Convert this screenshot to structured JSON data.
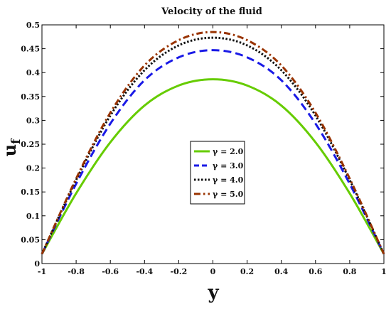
{
  "chart_data": {
    "type": "line",
    "title": "Velocity of the fluid",
    "xlabel": "y",
    "ylabel": "u",
    "ylabel_subscript": "f",
    "xlim": [
      -1,
      1
    ],
    "ylim": [
      0,
      0.5
    ],
    "xticks": [
      "-1",
      "-0.8",
      "-0.6",
      "-0.4",
      "-0.2",
      "0",
      "0.2",
      "0.4",
      "0.6",
      "0.8",
      "1"
    ],
    "yticks": [
      "0",
      "0.05",
      "0.1",
      "0.15",
      "0.2",
      "0.25",
      "0.3",
      "0.35",
      "0.4",
      "0.45",
      "0.5"
    ],
    "grid": false,
    "legend_position": "center-right",
    "x": [
      -1,
      -0.8,
      -0.6,
      -0.4,
      -0.2,
      0,
      0.2,
      0.4,
      0.6,
      0.8,
      1
    ],
    "series": [
      {
        "name": "γ = 2.0",
        "color": "#66cc00",
        "dash": "solid",
        "values": [
          0.02,
          0.147,
          0.254,
          0.331,
          0.373,
          0.386,
          0.373,
          0.331,
          0.254,
          0.147,
          0.02
        ]
      },
      {
        "name": "γ = 3.0",
        "color": "#1a1ae6",
        "dash": "dashed",
        "values": [
          0.02,
          0.167,
          0.293,
          0.384,
          0.432,
          0.447,
          0.432,
          0.384,
          0.293,
          0.167,
          0.02
        ]
      },
      {
        "name": "γ = 4.0",
        "color": "#111111",
        "dash": "dotted",
        "values": [
          0.02,
          0.175,
          0.31,
          0.405,
          0.457,
          0.473,
          0.457,
          0.405,
          0.31,
          0.175,
          0.02
        ]
      },
      {
        "name": "γ = 5.0",
        "color": "#993300",
        "dash": "dashdot",
        "values": [
          0.02,
          0.178,
          0.316,
          0.415,
          0.468,
          0.485,
          0.468,
          0.415,
          0.316,
          0.178,
          0.02
        ]
      }
    ]
  }
}
